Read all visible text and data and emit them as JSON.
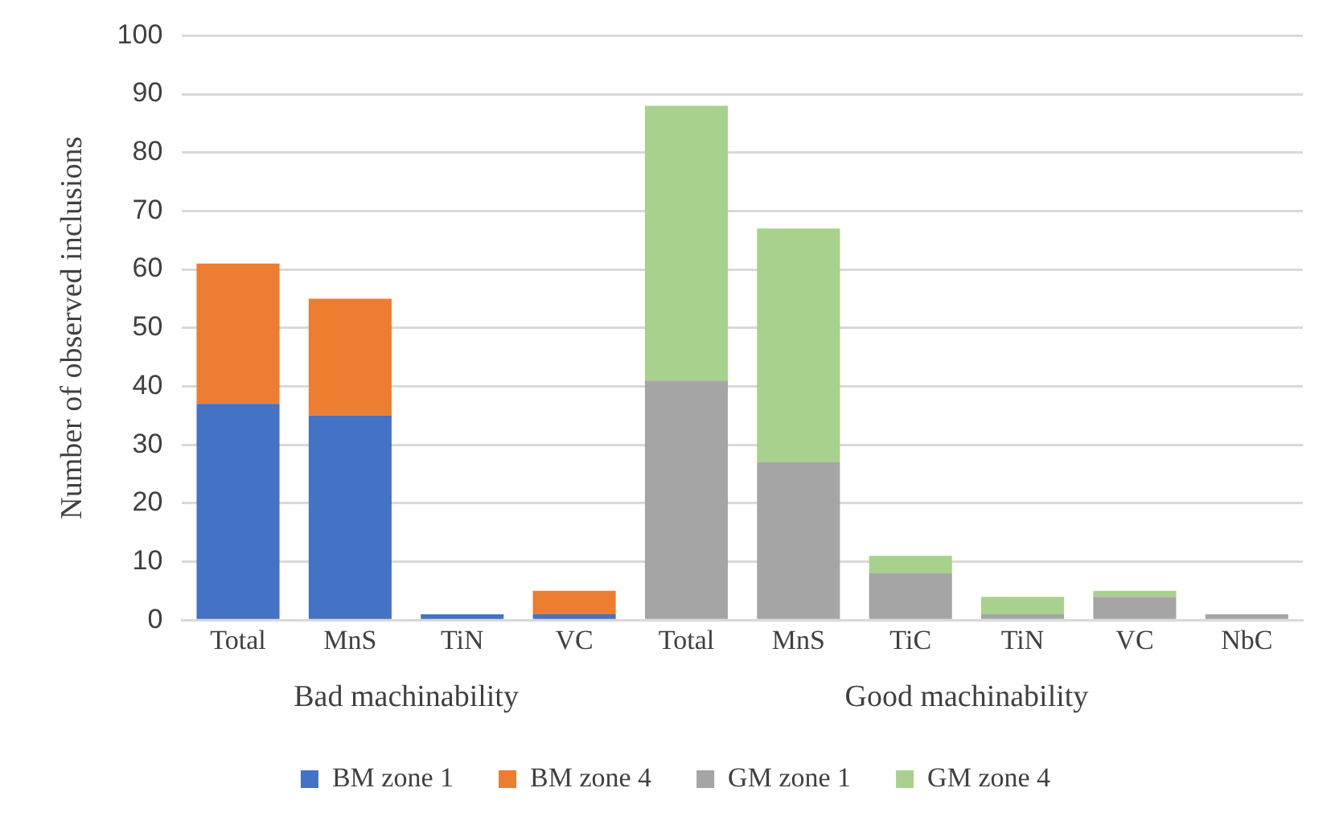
{
  "chart_data": {
    "type": "bar",
    "stacked": true,
    "ylabel": "Number of observed inclusions",
    "categories": [
      "Total",
      "MnS",
      "TiN",
      "VC",
      "Total",
      "MnS",
      "TiC",
      "TiN",
      "VC",
      "NbC"
    ],
    "series": [
      {
        "name": "BM zone 1",
        "color": "#4472c4",
        "values": [
          37,
          35,
          1,
          1,
          null,
          null,
          null,
          null,
          null,
          null
        ]
      },
      {
        "name": "BM zone 4",
        "color": "#ed7d31",
        "values": [
          24,
          20,
          0,
          4,
          null,
          null,
          null,
          null,
          null,
          null
        ]
      },
      {
        "name": "GM zone 1",
        "color": "#a5a5a5",
        "values": [
          null,
          null,
          null,
          null,
          41,
          27,
          8,
          1,
          4,
          1
        ]
      },
      {
        "name": "GM zone 4",
        "color": "#a9d18e",
        "values": [
          null,
          null,
          null,
          null,
          47,
          40,
          3,
          3,
          1,
          0
        ]
      }
    ],
    "annotations": [
      "Bad machinability",
      "Good machinability"
    ],
    "ylim": [
      0,
      100
    ],
    "yticks": [
      0,
      10,
      20,
      30,
      40,
      50,
      60,
      70,
      80,
      90,
      100
    ],
    "grid": "y",
    "legend": "bottom"
  }
}
